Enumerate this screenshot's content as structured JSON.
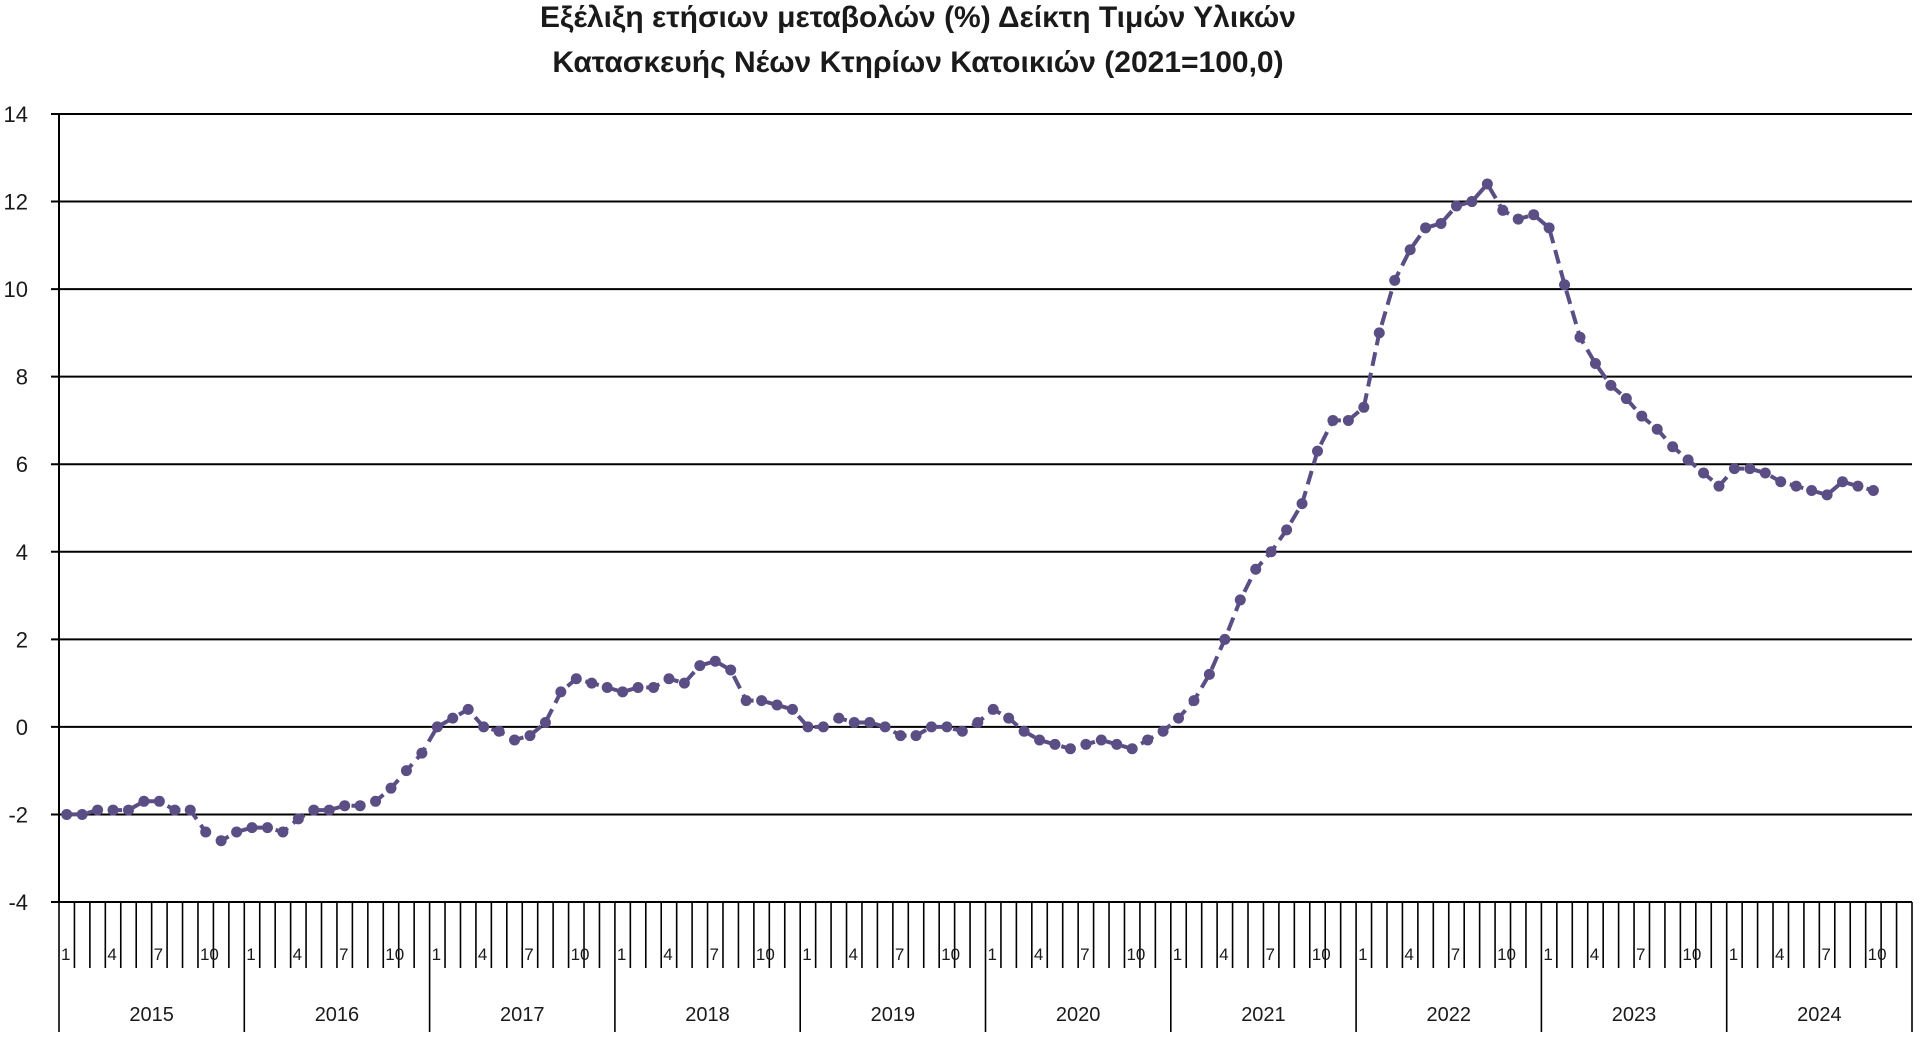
{
  "chart_data": {
    "type": "line",
    "title": [
      "Εξέλιξη ετήσιων μεταβολών (%) Δείκτη Τιμών Υλικών",
      "Κατασκευής Νέων Κτηρίων Κατοικιών (2021=100,0)"
    ],
    "ylim": [
      -4,
      14
    ],
    "yticks": [
      "14",
      "12",
      "10",
      "8",
      "6",
      "4",
      "2",
      "0",
      "-2",
      "-4"
    ],
    "month_tick_labels": [
      "1",
      "4",
      "7",
      "10"
    ],
    "years": [
      "2015",
      "2016",
      "2017",
      "2018",
      "2019",
      "2020",
      "2021",
      "2022",
      "2023",
      "2024"
    ],
    "grid": true,
    "legend": "none",
    "line_color": "#5b4e85",
    "line_style": "dashed",
    "markers": true,
    "series": [
      {
        "values": [
          -2.0,
          -2.0,
          -1.9,
          -1.9,
          -1.9,
          -1.7,
          -1.7,
          -1.9,
          -1.9,
          -2.4,
          -2.6,
          -2.4,
          -2.3,
          -2.3,
          -2.4,
          -2.1,
          -1.9,
          -1.9,
          -1.8,
          -1.8,
          -1.7,
          -1.4,
          -1.0,
          -0.6,
          0.0,
          0.2,
          0.4,
          0.0,
          -0.1,
          -0.3,
          -0.2,
          0.1,
          0.8,
          1.1,
          1.0,
          0.9,
          0.8,
          0.9,
          0.9,
          1.1,
          1.0,
          1.4,
          1.5,
          1.3,
          0.6,
          0.6,
          0.5,
          0.4,
          0.0,
          0.0,
          0.2,
          0.1,
          0.1,
          0.0,
          -0.2,
          -0.2,
          0.0,
          0.0,
          -0.1,
          0.1,
          0.4,
          0.2,
          -0.1,
          -0.3,
          -0.4,
          -0.5,
          -0.4,
          -0.3,
          -0.4,
          -0.5,
          -0.3,
          -0.1,
          0.2,
          0.6,
          1.2,
          2.0,
          2.9,
          3.6,
          4.0,
          4.5,
          5.1,
          6.3,
          7.0,
          7.0,
          7.3,
          9.0,
          10.2,
          10.9,
          11.4,
          11.5,
          11.9,
          12.0,
          12.4,
          11.8,
          11.6,
          11.7,
          11.4,
          10.1,
          8.9,
          8.3,
          7.8,
          7.5,
          7.1,
          6.8,
          6.4,
          6.1,
          5.8,
          5.5,
          5.9,
          5.9,
          5.8,
          5.6,
          5.5,
          5.4,
          5.3,
          5.6,
          5.5,
          5.4
        ]
      }
    ]
  }
}
